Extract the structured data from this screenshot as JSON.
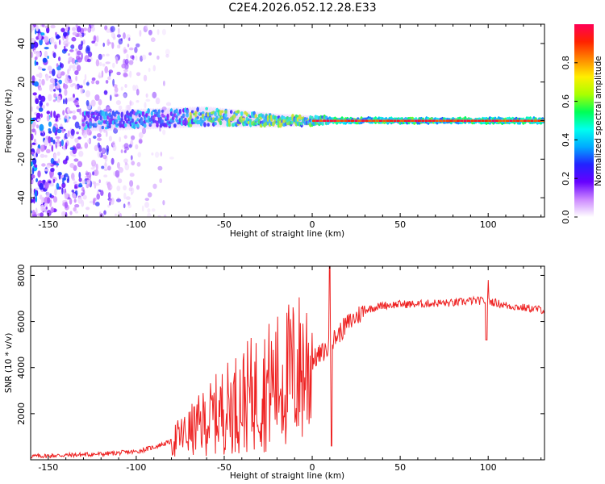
{
  "figure": {
    "title": "C2E4.2026.052.12.28.E33"
  },
  "chart_data": [
    {
      "type": "heatmap",
      "title": "",
      "xlabel": "Height of straight line (km)",
      "ylabel": "Frequency (Hz)",
      "xlim": [
        -160,
        132
      ],
      "ylim": [
        -50,
        50
      ],
      "xticks": [
        -150,
        -100,
        -50,
        0,
        50,
        100
      ],
      "yticks": [
        -40,
        -20,
        0,
        20,
        40
      ],
      "grid": false,
      "colorbar": {
        "label": "Normalized spectral amplitude",
        "range": [
          0,
          1
        ],
        "ticks": [
          "0.0",
          "0.2",
          "0.4",
          "0.6",
          "0.8"
        ],
        "colormap": [
          "#ffffff",
          "#cc88ff",
          "#6600ff",
          "#2222ff",
          "#00aaff",
          "#00ffee",
          "#00ff55",
          "#aaff00",
          "#ffee00",
          "#ff8800",
          "#ff2200",
          "#ff0055"
        ]
      },
      "description_points": {
        "centerline_frequency_hz": [
          {
            "x": -120,
            "y": 0
          },
          {
            "x": -60,
            "y": 2
          },
          {
            "x": -40,
            "y": 1
          },
          {
            "x": -20,
            "y": 0
          },
          {
            "x": 0,
            "y": 0
          },
          {
            "x": 50,
            "y": 0
          },
          {
            "x": 100,
            "y": 0
          },
          {
            "x": 130,
            "y": 0
          }
        ],
        "noise_extent_x": [
          -160,
          -78
        ]
      }
    },
    {
      "type": "line",
      "title": "",
      "xlabel": "Height of straight line (km)",
      "ylabel": "SNR (10 * v/v)",
      "xlim": [
        -160,
        132
      ],
      "ylim": [
        0,
        8400
      ],
      "xticks": [
        -150,
        -100,
        -50,
        0,
        50,
        100
      ],
      "yticks": [
        2000,
        4000,
        6000,
        8000
      ],
      "grid": false,
      "series": [
        {
          "name": "SNR",
          "color": "#ee2222",
          "x": [
            -160,
            -140,
            -120,
            -100,
            -90,
            -80,
            -70,
            -60,
            -50,
            -40,
            -30,
            -20,
            -10,
            0,
            5,
            10,
            12,
            20,
            30,
            40,
            50,
            60,
            70,
            80,
            90,
            100,
            110,
            120,
            132
          ],
          "y": [
            150,
            200,
            250,
            350,
            550,
            800,
            1200,
            1700,
            2200,
            2600,
            3000,
            3400,
            3800,
            4300,
            4600,
            4900,
            5200,
            5900,
            6500,
            6700,
            6750,
            6750,
            6800,
            6800,
            6900,
            6900,
            6700,
            6600,
            6500
          ]
        }
      ]
    }
  ]
}
